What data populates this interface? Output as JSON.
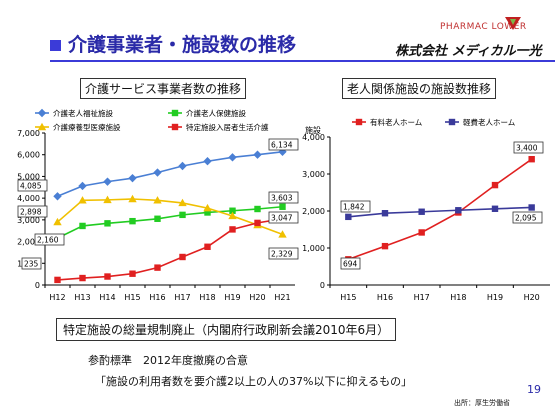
{
  "slide": {
    "title": "介護事業者・施設数の推移",
    "brand": "PHARMAC  LOWER",
    "brand_icon": "flower-logo-icon",
    "company": "株式会社 メディカル一光",
    "page_number": "19",
    "source": "出所：厚生労働省"
  },
  "notes": {
    "regulation": "特定施設の総量規制廃止（内閣府行政刷新会議2010年6月）",
    "agreement": "参酌標準　2012年度撤廃の合意",
    "target": "「施設の利用者数を要介護2以上の人の37%以下に抑えるもの」"
  },
  "colors": {
    "title_blue": "#2a2aa8",
    "welfare": "#4a7fd4",
    "health": "#22cc22",
    "medical": "#f0c000",
    "residential": "#e02020",
    "care_house": "#3a3a9a"
  },
  "chart_data": [
    {
      "type": "line",
      "title": "介護サービス事業者数の推移",
      "x": [
        "H12",
        "H13",
        "H14",
        "H15",
        "H16",
        "H17",
        "H18",
        "H19",
        "H20",
        "H21"
      ],
      "ylim": [
        0,
        7000
      ],
      "yticks": [
        "0",
        "1,000",
        "2,000",
        "3,000",
        "4,000",
        "5,000",
        "6,000",
        "7,000"
      ],
      "grid": false,
      "legend_position": "top",
      "series": [
        {
          "name": "介護老人福祉施設",
          "color": "#4a7fd4",
          "marker": "diamond",
          "values": [
            4085,
            4560,
            4760,
            4920,
            5180,
            5480,
            5700,
            5880,
            6000,
            6134
          ]
        },
        {
          "name": "介護老人保健施設",
          "color": "#22cc22",
          "marker": "square",
          "values": [
            2160,
            2720,
            2840,
            2940,
            3050,
            3230,
            3340,
            3420,
            3500,
            3603
          ]
        },
        {
          "name": "介護療養型医療施設",
          "color": "#f0c000",
          "marker": "triangle",
          "values": [
            2898,
            3900,
            3920,
            3960,
            3900,
            3780,
            3540,
            3180,
            2760,
            2329
          ]
        },
        {
          "name": "特定施設入居者生活介護",
          "color": "#e02020",
          "marker": "square",
          "values": [
            235,
            320,
            390,
            520,
            800,
            1290,
            1760,
            2560,
            2860,
            3047
          ]
        }
      ],
      "data_labels": [
        {
          "series": 0,
          "index": 0,
          "text": "4,085"
        },
        {
          "series": 0,
          "index": 9,
          "text": "6,134"
        },
        {
          "series": 1,
          "index": 0,
          "text": "2,160"
        },
        {
          "series": 1,
          "index": 9,
          "text": "3,603"
        },
        {
          "series": 2,
          "index": 0,
          "text": "2,898"
        },
        {
          "series": 2,
          "index": 9,
          "text": "2,329"
        },
        {
          "series": 3,
          "index": 0,
          "text": "235"
        },
        {
          "series": 3,
          "index": 9,
          "text": "3,047"
        }
      ]
    },
    {
      "type": "line",
      "title": "老人関係施設の施設数推移",
      "ylabel": "施設",
      "x": [
        "H15",
        "H16",
        "H17",
        "H18",
        "H19",
        "H20"
      ],
      "ylim": [
        0,
        4000
      ],
      "yticks": [
        "0",
        "1,000",
        "2,000",
        "3,000",
        "4,000"
      ],
      "grid": false,
      "legend_position": "top",
      "series": [
        {
          "name": "有料老人ホーム",
          "color": "#e02020",
          "marker": "square",
          "values": [
            694,
            1050,
            1420,
            1960,
            2700,
            3400
          ]
        },
        {
          "name": "軽費老人ホーム",
          "color": "#3a3a9a",
          "marker": "square",
          "values": [
            1842,
            1940,
            1980,
            2020,
            2060,
            2095
          ]
        }
      ],
      "data_labels": [
        {
          "series": 0,
          "index": 0,
          "text": "694"
        },
        {
          "series": 0,
          "index": 5,
          "text": "3,400"
        },
        {
          "series": 1,
          "index": 0,
          "text": "1,842"
        },
        {
          "series": 1,
          "index": 5,
          "text": "2,095"
        }
      ]
    }
  ]
}
